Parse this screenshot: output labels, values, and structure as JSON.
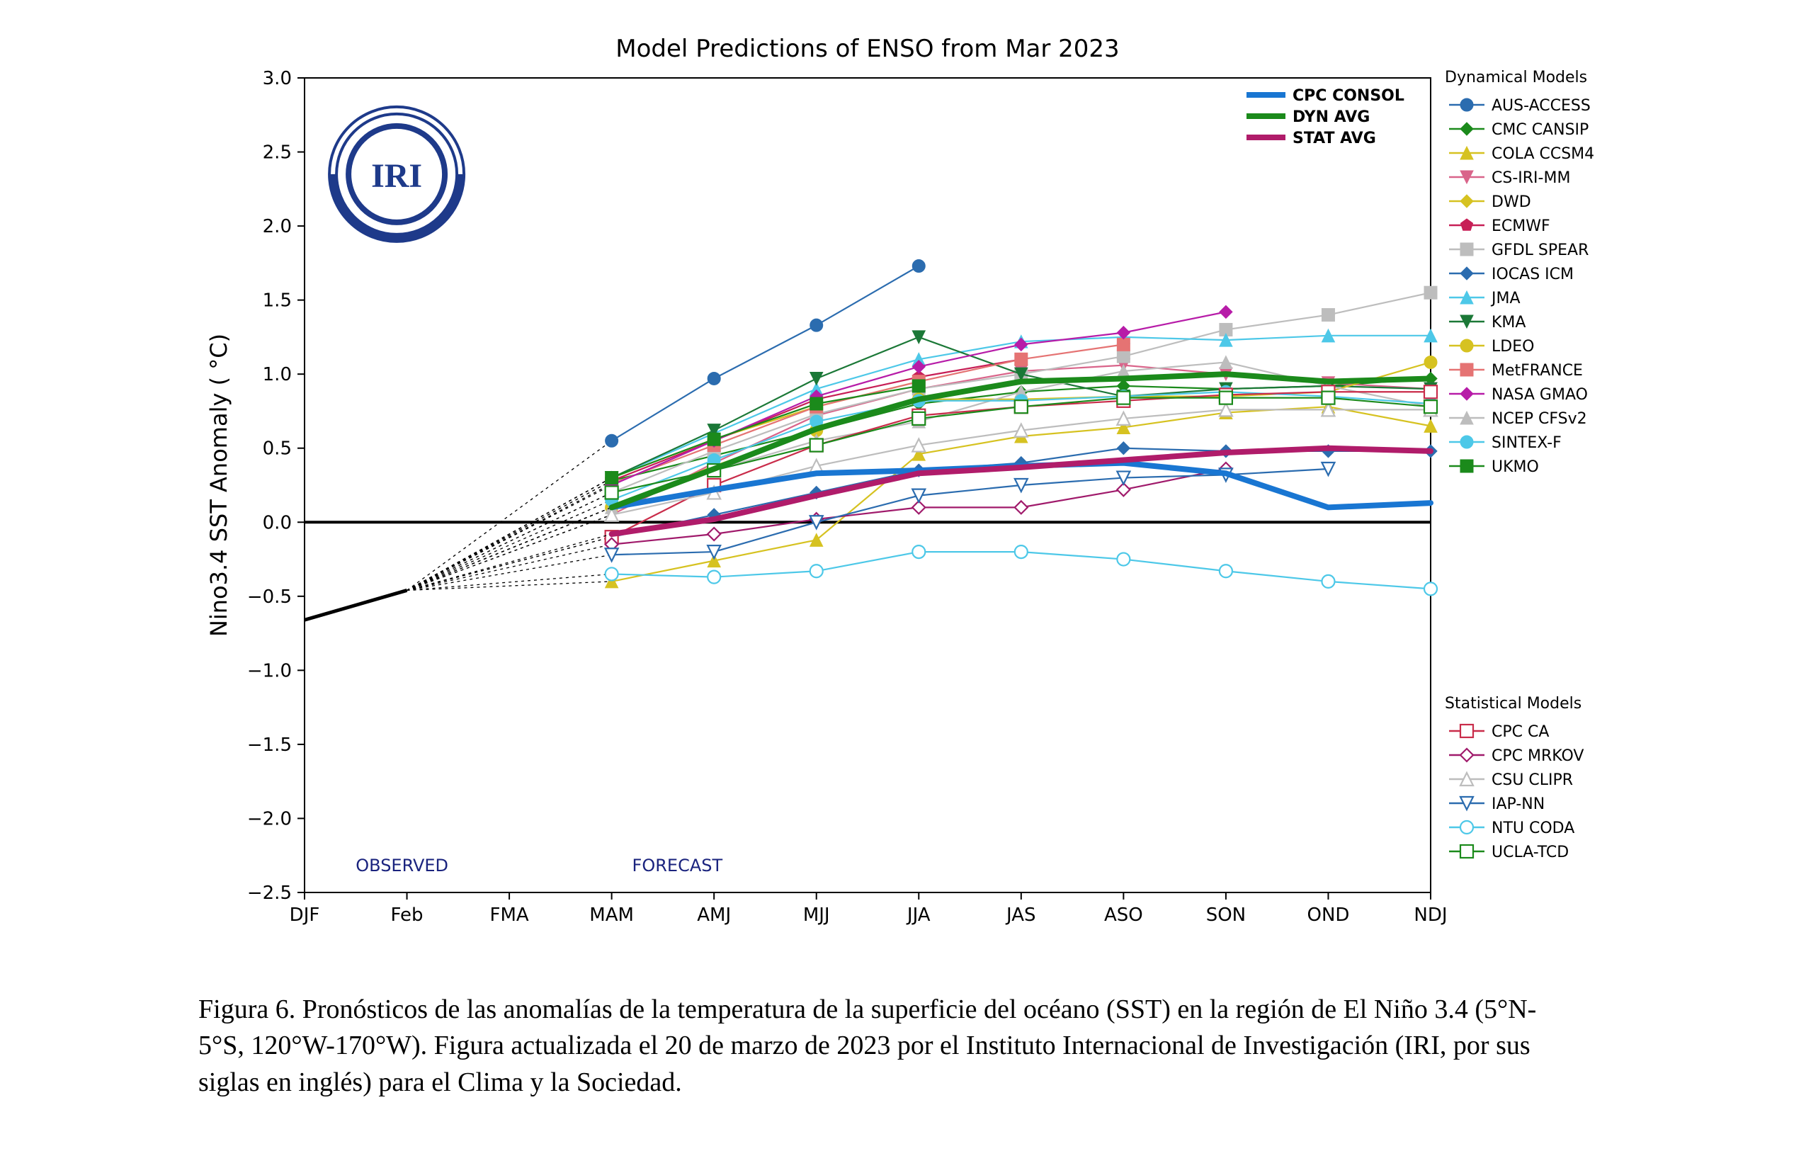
{
  "chart": {
    "title": "Model Predictions of ENSO from Mar 2023",
    "title_fontsize": 34,
    "title_color": "#000000",
    "ylabel": "Nino3.4 SST Anomaly ( °C)",
    "ylabel_fontsize": 32,
    "background_color": "#ffffff",
    "axis_color": "#000000",
    "zero_line_color": "#000000",
    "x_categories": [
      "DJF",
      "Feb",
      "FMA",
      "MAM",
      "AMJ",
      "MJJ",
      "JJA",
      "JAS",
      "ASO",
      "SON",
      "OND",
      "NDJ"
    ],
    "tick_fontsize": 26,
    "ylim": [
      -2.5,
      3.0
    ],
    "ytick_step": 0.5,
    "dashed_start_index": 1,
    "forecast_start_index": 3,
    "observed_label": "OBSERVED",
    "forecast_label": "FORECAST",
    "obsfore_color": "#1a237e",
    "obsfore_fontsize": 24,
    "logo_text": "IRI",
    "logo_color": "#1e3a8a",
    "observed": [
      -0.66,
      -0.46
    ],
    "main_legend_title": "",
    "dyn_legend_title": "Dynamical Models",
    "stat_legend_title": "Statistical Models",
    "legend_title_fontsize": 22,
    "legend_item_fontsize": 22,
    "avg_series": [
      {
        "id": "cpc_consol",
        "label": "CPC CONSOL",
        "color": "#1976d2",
        "width": 8,
        "values": [
          null,
          null,
          null,
          0.1,
          0.22,
          0.33,
          0.35,
          0.38,
          0.4,
          0.33,
          0.1,
          0.13
        ]
      },
      {
        "id": "dyn_avg",
        "label": "DYN AVG",
        "color": "#1b8a1b",
        "width": 8,
        "values": [
          null,
          null,
          null,
          0.1,
          0.36,
          0.63,
          0.83,
          0.95,
          0.97,
          1.0,
          0.95,
          0.97
        ]
      },
      {
        "id": "stat_avg",
        "label": "STAT AVG",
        "color": "#b01c6a",
        "width": 8,
        "values": [
          null,
          null,
          null,
          -0.08,
          0.02,
          0.18,
          0.33,
          0.37,
          0.42,
          0.47,
          0.5,
          0.48
        ]
      }
    ],
    "dyn_series": [
      {
        "id": "aus_access",
        "label": "AUS-ACCESS",
        "color": "#2b6caf",
        "marker": "circle",
        "fill": true,
        "values": [
          null,
          null,
          null,
          0.55,
          0.97,
          1.33,
          1.73,
          null,
          null,
          null,
          null,
          null
        ]
      },
      {
        "id": "cmc_cansip",
        "label": "CMC CANSIP",
        "color": "#1b8a1b",
        "marker": "diamond",
        "fill": true,
        "values": [
          null,
          null,
          null,
          0.28,
          0.45,
          0.62,
          0.8,
          0.88,
          0.92,
          0.9,
          0.92,
          0.97
        ]
      },
      {
        "id": "cola_ccsm4",
        "label": "COLA CCSM4",
        "color": "#d6c221",
        "marker": "triangle-up",
        "fill": true,
        "values": [
          null,
          null,
          null,
          -0.4,
          -0.26,
          -0.12,
          0.46,
          0.58,
          0.64,
          0.74,
          0.78,
          0.65
        ]
      },
      {
        "id": "cs_iri_mm",
        "label": "CS-IRI-MM",
        "color": "#d9648a",
        "marker": "triangle-down",
        "fill": true,
        "values": [
          null,
          null,
          null,
          0.05,
          0.4,
          0.72,
          0.9,
          1.02,
          1.06,
          1.0,
          0.94,
          0.9
        ]
      },
      {
        "id": "dwd",
        "label": "DWD",
        "color": "#d6c221",
        "marker": "diamond",
        "fill": true,
        "values": [
          null,
          null,
          null,
          0.3,
          0.56,
          0.78,
          0.95,
          null,
          null,
          null,
          null,
          null
        ]
      },
      {
        "id": "ecmwf",
        "label": "ECMWF",
        "color": "#c71f56",
        "marker": "pentagon",
        "fill": true,
        "values": [
          null,
          null,
          null,
          0.28,
          0.55,
          0.83,
          0.98,
          1.1,
          null,
          null,
          null,
          null
        ]
      },
      {
        "id": "gfdl_spear",
        "label": "GFDL SPEAR",
        "color": "#bdbdbd",
        "marker": "square",
        "fill": true,
        "values": [
          null,
          null,
          null,
          0.2,
          0.48,
          0.73,
          0.9,
          1.0,
          1.12,
          1.3,
          1.4,
          1.55
        ]
      },
      {
        "id": "iocas_icm",
        "label": "IOCAS ICM",
        "color": "#2b6caf",
        "marker": "diamond",
        "fill": true,
        "values": [
          null,
          null,
          null,
          -0.1,
          0.05,
          0.2,
          0.35,
          0.4,
          0.5,
          0.48,
          0.48,
          0.48
        ]
      },
      {
        "id": "jma",
        "label": "JMA",
        "color": "#4dc8e8",
        "marker": "triangle-up",
        "fill": true,
        "values": [
          null,
          null,
          null,
          0.3,
          0.6,
          0.9,
          1.1,
          1.22,
          1.25,
          1.23,
          1.26,
          1.26
        ]
      },
      {
        "id": "kma",
        "label": "KMA",
        "color": "#1b7837",
        "marker": "triangle-down",
        "fill": true,
        "values": [
          null,
          null,
          null,
          0.3,
          0.62,
          0.97,
          1.25,
          1.0,
          0.85,
          0.9,
          0.92,
          0.9
        ]
      },
      {
        "id": "ldeo",
        "label": "LDEO",
        "color": "#d6c221",
        "marker": "circle",
        "fill": true,
        "values": [
          null,
          null,
          null,
          0.1,
          0.38,
          0.62,
          0.83,
          0.83,
          0.85,
          0.85,
          0.88,
          1.08
        ]
      },
      {
        "id": "metfrance",
        "label": "MetFRANCE",
        "color": "#e57373",
        "marker": "square",
        "fill": true,
        "values": [
          null,
          null,
          null,
          0.26,
          0.52,
          0.78,
          0.95,
          1.1,
          1.2,
          null,
          null,
          null
        ]
      },
      {
        "id": "nasa_gmao",
        "label": "NASA GMAO",
        "color": "#b71ca8",
        "marker": "diamond",
        "fill": true,
        "values": [
          null,
          null,
          null,
          0.25,
          0.55,
          0.85,
          1.05,
          1.2,
          1.28,
          1.42,
          null,
          null
        ]
      },
      {
        "id": "ncep_cfsv2",
        "label": "NCEP CFSv2",
        "color": "#bdbdbd",
        "marker": "triangle-up",
        "fill": true,
        "values": [
          null,
          null,
          null,
          0.1,
          0.35,
          0.55,
          0.68,
          0.88,
          1.02,
          1.08,
          0.92,
          0.78
        ]
      },
      {
        "id": "sintex_f",
        "label": "SINTEX-F",
        "color": "#4dc8e8",
        "marker": "circle",
        "fill": true,
        "values": [
          null,
          null,
          null,
          0.15,
          0.42,
          0.68,
          0.82,
          0.82,
          0.85,
          0.88,
          0.85,
          0.8
        ]
      },
      {
        "id": "ukmo",
        "label": "UKMO",
        "color": "#1b8a1b",
        "marker": "square",
        "fill": true,
        "values": [
          null,
          null,
          null,
          0.3,
          0.56,
          0.8,
          0.92,
          null,
          null,
          null,
          null,
          null
        ]
      }
    ],
    "stat_series": [
      {
        "id": "cpc_ca",
        "label": "CPC CA",
        "color": "#c92c4a",
        "marker": "square",
        "fill": false,
        "values": [
          null,
          null,
          null,
          -0.1,
          0.25,
          0.52,
          0.72,
          0.78,
          0.82,
          0.86,
          0.88,
          0.88
        ]
      },
      {
        "id": "cpc_mrkov",
        "label": "CPC MRKOV",
        "color": "#a01a6b",
        "marker": "diamond",
        "fill": false,
        "values": [
          null,
          null,
          null,
          -0.15,
          -0.08,
          0.02,
          0.1,
          0.1,
          0.22,
          0.36,
          null,
          null
        ]
      },
      {
        "id": "csu_clipr",
        "label": "CSU CLIPR",
        "color": "#bdbdbd",
        "marker": "triangle-up",
        "fill": false,
        "values": [
          null,
          null,
          null,
          0.05,
          0.2,
          0.38,
          0.52,
          0.62,
          0.7,
          0.76,
          0.76,
          0.76
        ]
      },
      {
        "id": "iap_nn",
        "label": "IAP-NN",
        "color": "#2b6caf",
        "marker": "triangle-down",
        "fill": false,
        "values": [
          null,
          null,
          null,
          -0.22,
          -0.2,
          0.0,
          0.18,
          0.25,
          0.3,
          0.32,
          0.36,
          null
        ]
      },
      {
        "id": "ntu_coda",
        "label": "NTU CODA",
        "color": "#4dc8e8",
        "marker": "circle",
        "fill": false,
        "values": [
          null,
          null,
          null,
          -0.35,
          -0.37,
          -0.33,
          -0.2,
          -0.2,
          -0.25,
          -0.33,
          -0.4,
          -0.45
        ]
      },
      {
        "id": "ucla_tcd",
        "label": "UCLA-TCD",
        "color": "#1b8a1b",
        "marker": "square",
        "fill": false,
        "values": [
          null,
          null,
          null,
          0.2,
          0.35,
          0.52,
          0.7,
          0.78,
          0.84,
          0.84,
          0.84,
          0.78
        ]
      }
    ]
  },
  "caption": {
    "text": "Figura 6. Pronósticos de las anomalías de la temperatura de la superficie del océano (SST) en la región de El Niño 3.4 (5°N-5°S, 120°W-170°W). Figura actualizada el 20 de marzo de 2023 por el Instituto Internacional de Investigación (IRI, por sus siglas en inglés) para el Clima y la Sociedad.",
    "fontsize": 38,
    "color": "#000000"
  }
}
